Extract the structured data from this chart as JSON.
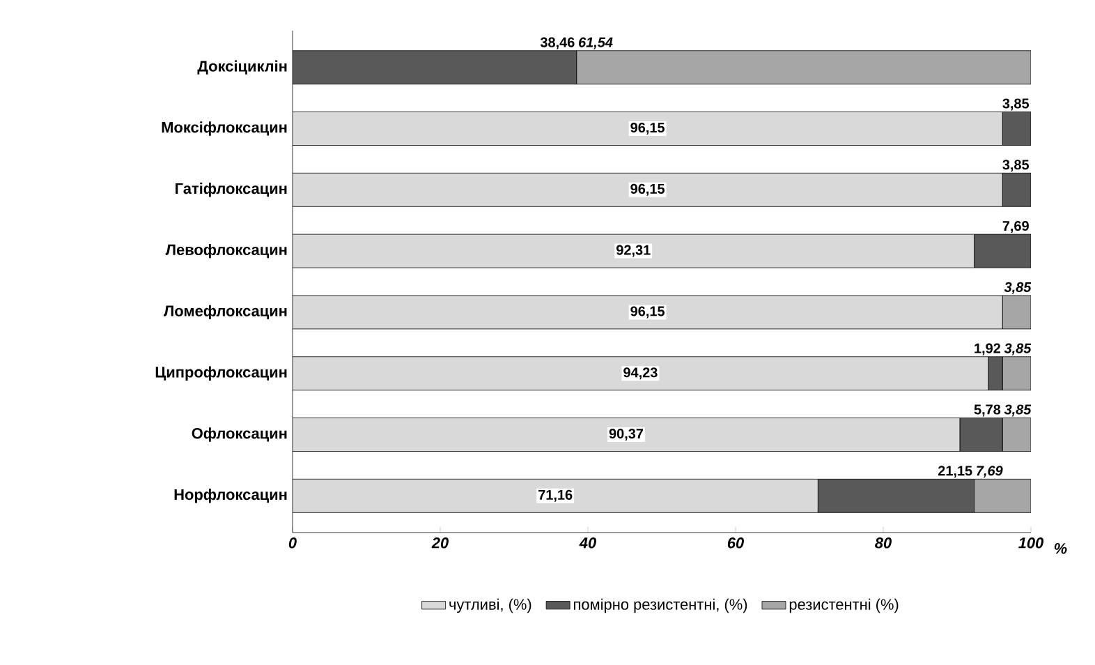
{
  "chart_data": {
    "type": "bar",
    "orientation": "horizontal",
    "stacked": true,
    "categories": [
      "Доксіциклін",
      "Моксіфлоксацин",
      "Гатіфлоксацин",
      "Левофлоксацин",
      "Ломефлоксацин",
      "Ципрофлоксацин",
      "Офлоксацин",
      "Норфлоксацин"
    ],
    "series": [
      {
        "name": "чутливі, (%)",
        "color": "#d9d9d9",
        "values": [
          0,
          96.15,
          96.15,
          92.31,
          96.15,
          94.23,
          90.37,
          71.16
        ],
        "value_labels": [
          null,
          "96,15",
          "96,15",
          "92,31",
          "96,15",
          "94,23",
          "90,37",
          "71,16"
        ]
      },
      {
        "name": "помірно резистентні, (%)",
        "color": "#595959",
        "values": [
          38.46,
          3.85,
          3.85,
          7.69,
          0,
          1.92,
          5.78,
          21.15
        ],
        "value_labels": [
          "38,46",
          "3,85",
          "3,85",
          "7,69",
          null,
          "1,92",
          "5,78",
          "21,15"
        ]
      },
      {
        "name": "резистентні (%)",
        "color": "#a6a6a6",
        "values": [
          61.54,
          0,
          0,
          0,
          3.85,
          3.85,
          3.85,
          7.69
        ],
        "value_labels": [
          "61,54",
          null,
          null,
          null,
          "3,85",
          "3,85",
          "3,85",
          "7,69"
        ]
      }
    ],
    "xlabel": "%",
    "xlim": [
      0,
      100
    ],
    "xticks": [
      0,
      20,
      40,
      60,
      80,
      100
    ],
    "legend": "bottom"
  }
}
